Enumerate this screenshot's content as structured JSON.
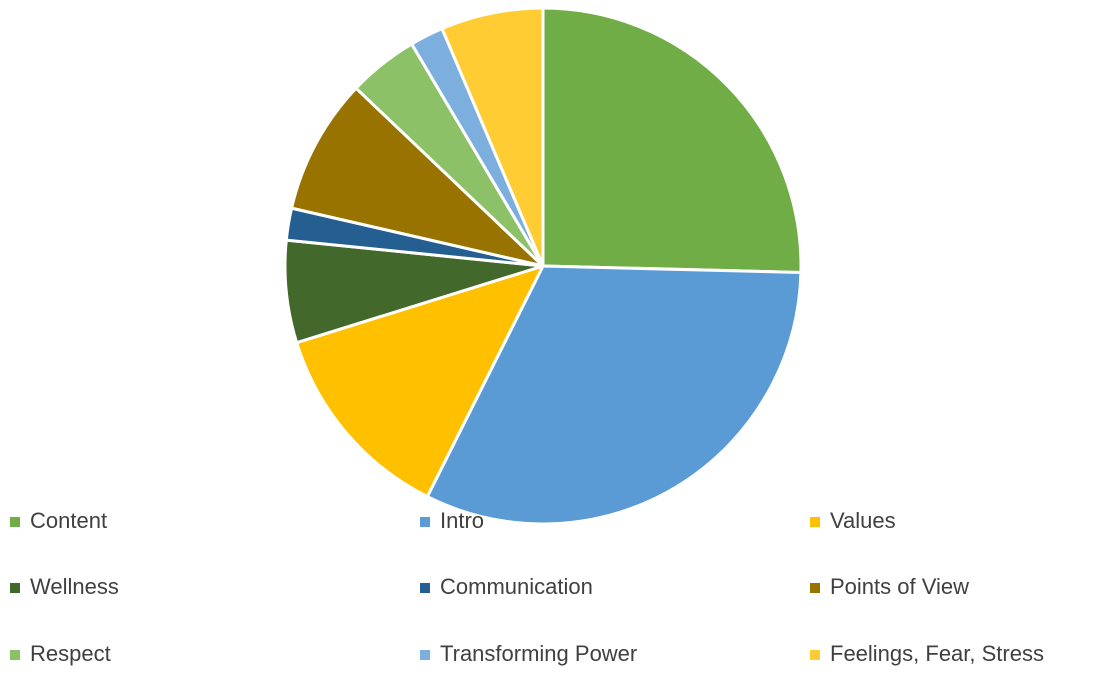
{
  "chart_data": {
    "type": "pie",
    "categories": [
      "Content",
      "Intro",
      "Values",
      "Wellness",
      "Communication",
      "Points of View",
      "Respect",
      "Transforming Power",
      "Feelings, Fear, Stress"
    ],
    "values": [
      25.4,
      32.0,
      12.8,
      6.4,
      2.0,
      8.5,
      4.4,
      2.1,
      6.4
    ],
    "colors": [
      "#70ad47",
      "#5b9bd5",
      "#ffc000",
      "#43682b",
      "#255e91",
      "#997300",
      "#8cc168",
      "#7cafdd",
      "#ffcd33"
    ],
    "legend": "bottom"
  }
}
